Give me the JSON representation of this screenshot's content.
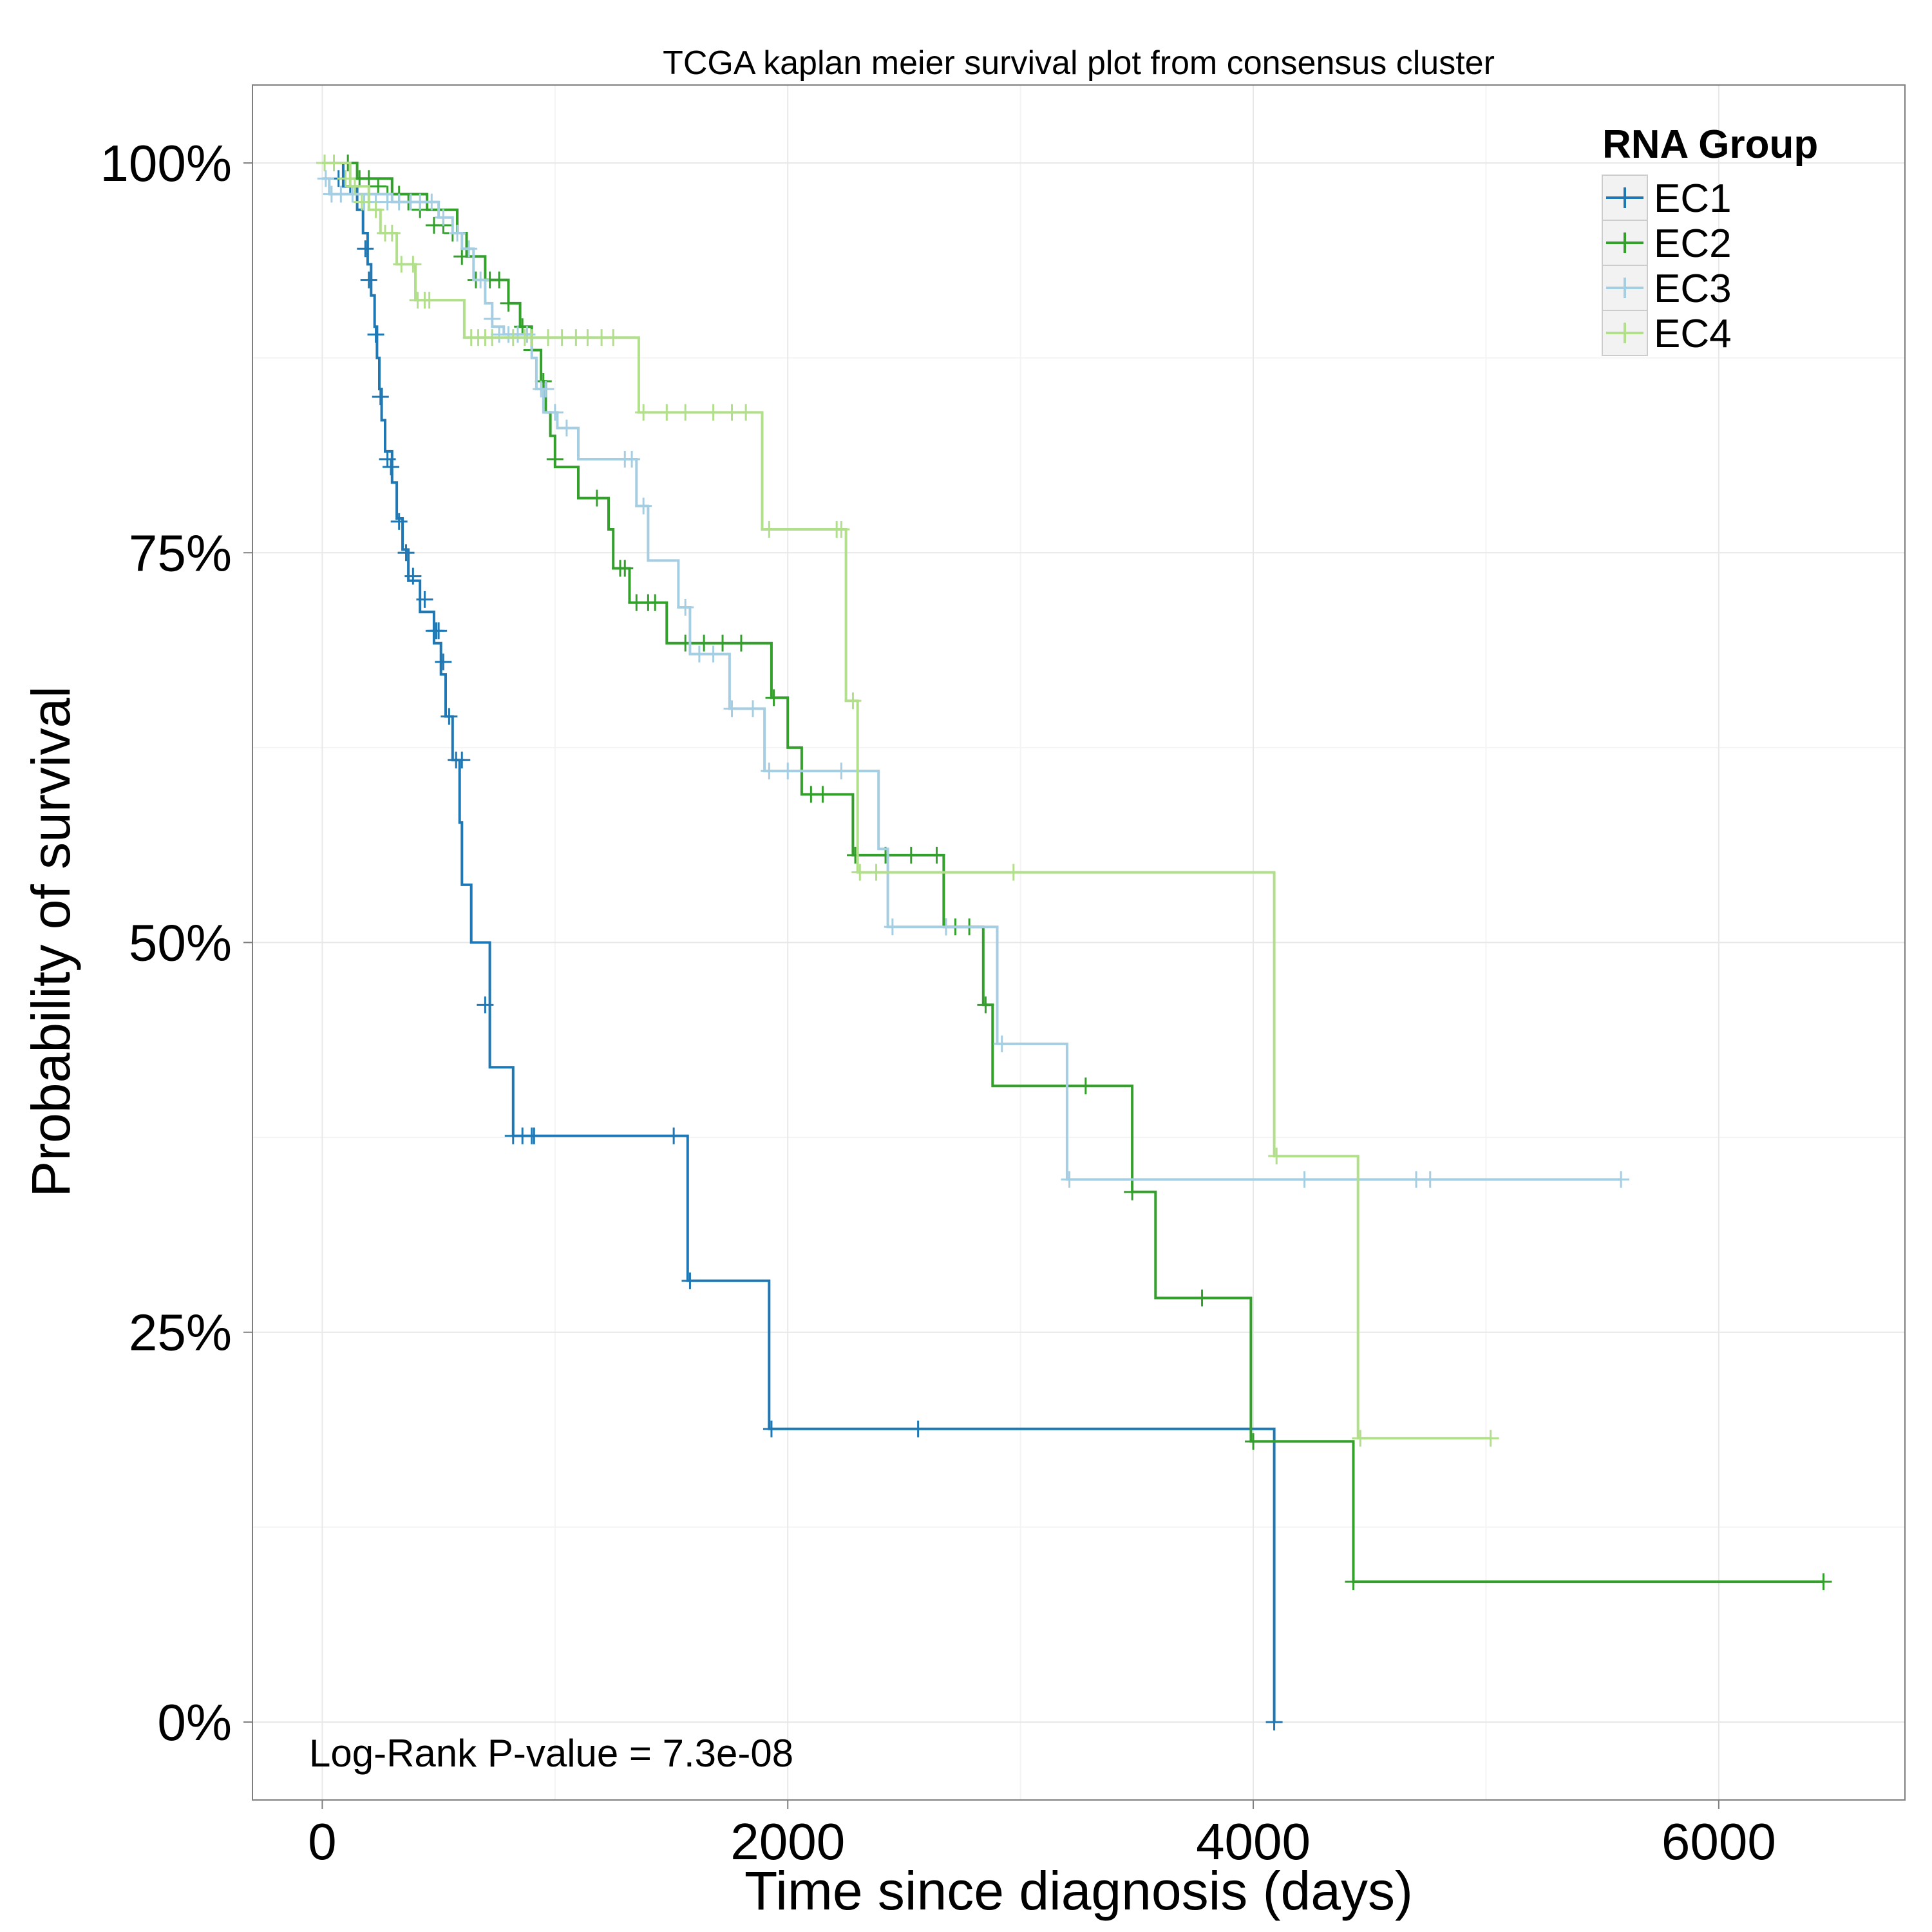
{
  "chart_data": {
    "type": "line",
    "title": "TCGA kaplan meier survival plot from consensus cluster",
    "xlabel": "Time since diagnosis (days)",
    "ylabel": "Probability of survival",
    "xlim": [
      -300,
      6800
    ],
    "ylim": [
      -0.05,
      1.05
    ],
    "x_ticks": [
      0,
      2000,
      4000,
      6000
    ],
    "x_tick_labels": [
      "0",
      "2000",
      "4000",
      "6000"
    ],
    "y_ticks": [
      0,
      0.25,
      0.5,
      0.75,
      1.0
    ],
    "y_tick_labels": [
      "0%",
      "25%",
      "50%",
      "75%",
      "100%"
    ],
    "grid": true,
    "legend": {
      "title": "RNA Group",
      "position": "top-right"
    },
    "annotation": "Log-Rank P-value = 7.3e-08",
    "series": [
      {
        "name": "EC1",
        "color": "#1f78b4",
        "steps": [
          [
            0,
            1.0
          ],
          [
            90,
            0.985
          ],
          [
            150,
            0.97
          ],
          [
            175,
            0.955
          ],
          [
            195,
            0.935
          ],
          [
            210,
            0.915
          ],
          [
            225,
            0.895
          ],
          [
            235,
            0.875
          ],
          [
            245,
            0.855
          ],
          [
            255,
            0.835
          ],
          [
            270,
            0.815
          ],
          [
            300,
            0.795
          ],
          [
            320,
            0.772
          ],
          [
            345,
            0.752
          ],
          [
            370,
            0.732
          ],
          [
            420,
            0.712
          ],
          [
            480,
            0.692
          ],
          [
            510,
            0.672
          ],
          [
            530,
            0.645
          ],
          [
            560,
            0.617
          ],
          [
            590,
            0.577
          ],
          [
            600,
            0.537
          ],
          [
            640,
            0.5
          ],
          [
            720,
            0.42
          ],
          [
            820,
            0.376
          ],
          [
            1570,
            0.283
          ],
          [
            1920,
            0.188
          ],
          [
            4090,
            0.0
          ]
        ],
        "end_x": 4090,
        "censored": [
          [
            70,
            0.99
          ],
          [
            120,
            0.985
          ],
          [
            185,
            0.945
          ],
          [
            200,
            0.925
          ],
          [
            230,
            0.89
          ],
          [
            250,
            0.85
          ],
          [
            280,
            0.81
          ],
          [
            295,
            0.805
          ],
          [
            330,
            0.77
          ],
          [
            360,
            0.75
          ],
          [
            390,
            0.735
          ],
          [
            440,
            0.72
          ],
          [
            480,
            0.7
          ],
          [
            490,
            0.7
          ],
          [
            500,
            0.7
          ],
          [
            520,
            0.68
          ],
          [
            545,
            0.645
          ],
          [
            575,
            0.617
          ],
          [
            600,
            0.617
          ],
          [
            700,
            0.46
          ],
          [
            820,
            0.376
          ],
          [
            860,
            0.376
          ],
          [
            900,
            0.376
          ],
          [
            910,
            0.376
          ],
          [
            1510,
            0.376
          ],
          [
            1580,
            0.283
          ],
          [
            1930,
            0.188
          ],
          [
            2560,
            0.188
          ],
          [
            4090,
            0.0
          ]
        ]
      },
      {
        "name": "EC2",
        "color": "#33a02c",
        "steps": [
          [
            0,
            1.0
          ],
          [
            150,
            0.99
          ],
          [
            300,
            0.98
          ],
          [
            450,
            0.97
          ],
          [
            580,
            0.955
          ],
          [
            620,
            0.94
          ],
          [
            700,
            0.925
          ],
          [
            800,
            0.91
          ],
          [
            850,
            0.895
          ],
          [
            900,
            0.88
          ],
          [
            940,
            0.86
          ],
          [
            960,
            0.84
          ],
          [
            980,
            0.825
          ],
          [
            1000,
            0.805
          ],
          [
            1100,
            0.785
          ],
          [
            1230,
            0.765
          ],
          [
            1250,
            0.74
          ],
          [
            1320,
            0.718
          ],
          [
            1480,
            0.692
          ],
          [
            1930,
            0.657
          ],
          [
            2000,
            0.625
          ],
          [
            2060,
            0.595
          ],
          [
            2280,
            0.556
          ],
          [
            2670,
            0.51
          ],
          [
            2840,
            0.46
          ],
          [
            2880,
            0.408
          ],
          [
            3480,
            0.34
          ],
          [
            3580,
            0.272
          ],
          [
            3990,
            0.18
          ],
          [
            4430,
            0.09
          ]
        ],
        "end_x": 6450,
        "censored": [
          [
            110,
            1.0
          ],
          [
            160,
            0.99
          ],
          [
            200,
            0.99
          ],
          [
            240,
            0.985
          ],
          [
            280,
            0.98
          ],
          [
            330,
            0.98
          ],
          [
            370,
            0.975
          ],
          [
            420,
            0.97
          ],
          [
            480,
            0.96
          ],
          [
            520,
            0.96
          ],
          [
            560,
            0.955
          ],
          [
            600,
            0.94
          ],
          [
            660,
            0.925
          ],
          [
            720,
            0.925
          ],
          [
            760,
            0.925
          ],
          [
            800,
            0.91
          ],
          [
            860,
            0.895
          ],
          [
            900,
            0.88
          ],
          [
            950,
            0.86
          ],
          [
            1000,
            0.81
          ],
          [
            1180,
            0.785
          ],
          [
            1280,
            0.74
          ],
          [
            1300,
            0.74
          ],
          [
            1350,
            0.718
          ],
          [
            1400,
            0.718
          ],
          [
            1430,
            0.718
          ],
          [
            1560,
            0.692
          ],
          [
            1640,
            0.692
          ],
          [
            1720,
            0.692
          ],
          [
            1800,
            0.692
          ],
          [
            1940,
            0.657
          ],
          [
            2100,
            0.595
          ],
          [
            2150,
            0.595
          ],
          [
            2290,
            0.556
          ],
          [
            2420,
            0.556
          ],
          [
            2530,
            0.556
          ],
          [
            2640,
            0.556
          ],
          [
            2680,
            0.51
          ],
          [
            2720,
            0.51
          ],
          [
            2780,
            0.51
          ],
          [
            2850,
            0.46
          ],
          [
            3280,
            0.408
          ],
          [
            3480,
            0.34
          ],
          [
            3780,
            0.272
          ],
          [
            4000,
            0.18
          ],
          [
            4430,
            0.09
          ],
          [
            6450,
            0.09
          ]
        ]
      },
      {
        "name": "EC3",
        "color": "#a6cee3",
        "steps": [
          [
            0,
            0.99
          ],
          [
            30,
            0.98
          ],
          [
            300,
            0.975
          ],
          [
            500,
            0.965
          ],
          [
            560,
            0.955
          ],
          [
            600,
            0.945
          ],
          [
            650,
            0.925
          ],
          [
            700,
            0.91
          ],
          [
            730,
            0.895
          ],
          [
            780,
            0.89
          ],
          [
            900,
            0.875
          ],
          [
            920,
            0.855
          ],
          [
            950,
            0.84
          ],
          [
            1010,
            0.83
          ],
          [
            1100,
            0.81
          ],
          [
            1350,
            0.78
          ],
          [
            1400,
            0.745
          ],
          [
            1530,
            0.715
          ],
          [
            1580,
            0.685
          ],
          [
            1750,
            0.65
          ],
          [
            1900,
            0.61
          ],
          [
            2390,
            0.56
          ],
          [
            2430,
            0.51
          ],
          [
            2900,
            0.435
          ],
          [
            3200,
            0.348
          ]
        ],
        "end_x": 5580,
        "censored": [
          [
            15,
            0.99
          ],
          [
            40,
            0.98
          ],
          [
            80,
            0.98
          ],
          [
            130,
            0.98
          ],
          [
            180,
            0.975
          ],
          [
            230,
            0.975
          ],
          [
            280,
            0.975
          ],
          [
            330,
            0.975
          ],
          [
            380,
            0.975
          ],
          [
            420,
            0.975
          ],
          [
            470,
            0.975
          ],
          [
            520,
            0.965
          ],
          [
            580,
            0.955
          ],
          [
            630,
            0.945
          ],
          [
            680,
            0.925
          ],
          [
            730,
            0.9
          ],
          [
            760,
            0.89
          ],
          [
            800,
            0.89
          ],
          [
            840,
            0.89
          ],
          [
            880,
            0.89
          ],
          [
            940,
            0.855
          ],
          [
            960,
            0.855
          ],
          [
            1000,
            0.84
          ],
          [
            1050,
            0.83
          ],
          [
            1300,
            0.81
          ],
          [
            1330,
            0.81
          ],
          [
            1380,
            0.78
          ],
          [
            1560,
            0.715
          ],
          [
            1620,
            0.685
          ],
          [
            1680,
            0.685
          ],
          [
            1760,
            0.65
          ],
          [
            1850,
            0.65
          ],
          [
            1920,
            0.61
          ],
          [
            2000,
            0.61
          ],
          [
            2230,
            0.61
          ],
          [
            2450,
            0.51
          ],
          [
            2680,
            0.51
          ],
          [
            2920,
            0.435
          ],
          [
            3210,
            0.348
          ],
          [
            4220,
            0.348
          ],
          [
            4700,
            0.348
          ],
          [
            4760,
            0.348
          ],
          [
            5580,
            0.348
          ]
        ]
      },
      {
        "name": "EC4",
        "color": "#b2df8a",
        "steps": [
          [
            0,
            1.0
          ],
          [
            120,
            0.985
          ],
          [
            200,
            0.97
          ],
          [
            250,
            0.955
          ],
          [
            320,
            0.935
          ],
          [
            400,
            0.912
          ],
          [
            610,
            0.888
          ],
          [
            1360,
            0.84
          ],
          [
            1890,
            0.765
          ],
          [
            2250,
            0.655
          ],
          [
            2300,
            0.545
          ],
          [
            4090,
            0.363
          ],
          [
            4450,
            0.182
          ]
        ],
        "end_x": 5020,
        "censored": [
          [
            10,
            1.0
          ],
          [
            50,
            1.0
          ],
          [
            100,
            0.99
          ],
          [
            140,
            0.985
          ],
          [
            170,
            0.975
          ],
          [
            230,
            0.97
          ],
          [
            270,
            0.955
          ],
          [
            300,
            0.955
          ],
          [
            340,
            0.935
          ],
          [
            390,
            0.935
          ],
          [
            410,
            0.912
          ],
          [
            440,
            0.912
          ],
          [
            460,
            0.912
          ],
          [
            640,
            0.888
          ],
          [
            670,
            0.888
          ],
          [
            700,
            0.888
          ],
          [
            730,
            0.888
          ],
          [
            820,
            0.888
          ],
          [
            870,
            0.888
          ],
          [
            900,
            0.888
          ],
          [
            970,
            0.888
          ],
          [
            1030,
            0.888
          ],
          [
            1090,
            0.888
          ],
          [
            1140,
            0.888
          ],
          [
            1200,
            0.888
          ],
          [
            1250,
            0.888
          ],
          [
            1380,
            0.84
          ],
          [
            1480,
            0.84
          ],
          [
            1560,
            0.84
          ],
          [
            1680,
            0.84
          ],
          [
            1760,
            0.84
          ],
          [
            1820,
            0.84
          ],
          [
            1920,
            0.765
          ],
          [
            2210,
            0.765
          ],
          [
            2230,
            0.765
          ],
          [
            2280,
            0.655
          ],
          [
            2310,
            0.545
          ],
          [
            2380,
            0.545
          ],
          [
            2970,
            0.545
          ],
          [
            4100,
            0.363
          ],
          [
            4460,
            0.182
          ],
          [
            5020,
            0.182
          ]
        ]
      }
    ]
  }
}
